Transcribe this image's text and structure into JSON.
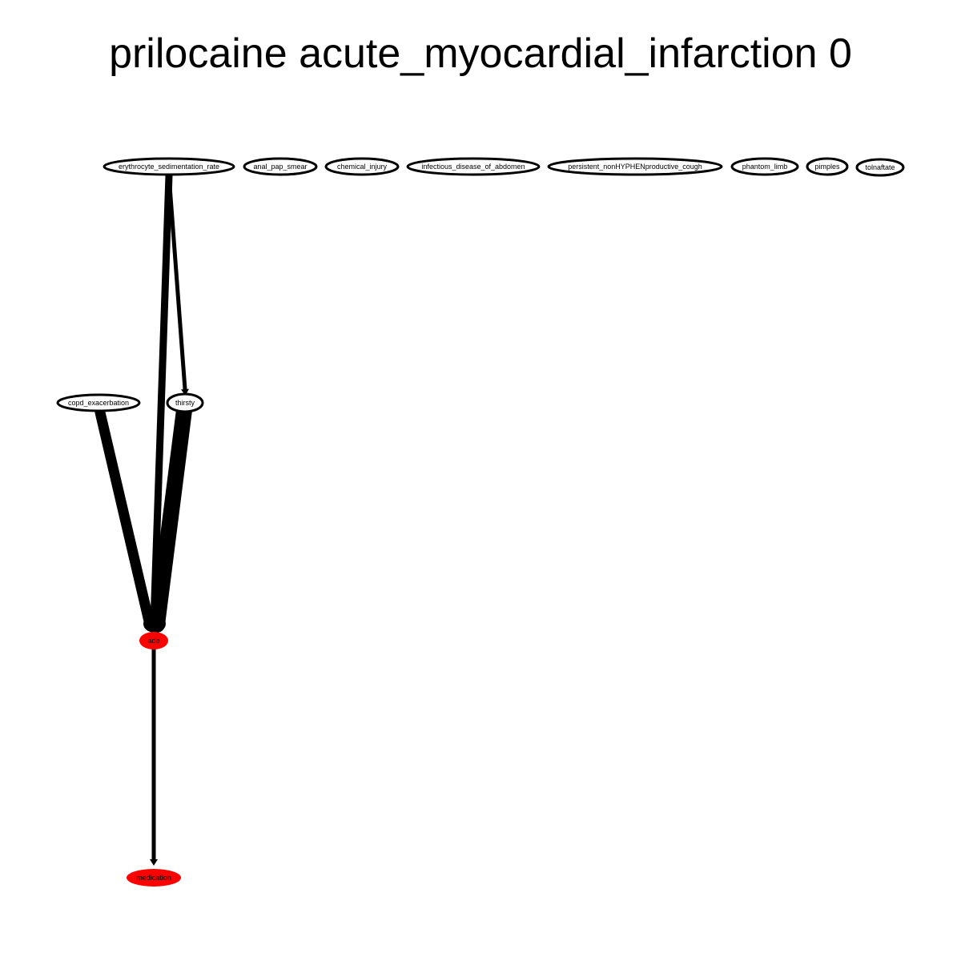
{
  "title": "prilocaine acute_myocardial_infarction 0",
  "colors": {
    "highlight": "#ff0000",
    "node_fill": "#ffffff",
    "stroke": "#000000"
  },
  "nodes": [
    {
      "id": "erythrocyte_sedimentation_rate",
      "label": "erythrocyte_sedimentation_rate",
      "highlight": false
    },
    {
      "id": "anal_pap_smear",
      "label": "anal_pap_smear",
      "highlight": false
    },
    {
      "id": "chemical_injury",
      "label": "chemical_injury",
      "highlight": false
    },
    {
      "id": "infectious_disease_of_abdomen",
      "label": "infectious_disease_of_abdomen",
      "highlight": false
    },
    {
      "id": "persistent_nonHYPHENproductive_cough",
      "label": "persistent_nonHYPHENproductive_cough",
      "highlight": false
    },
    {
      "id": "phantom_limb",
      "label": "phantom_limb",
      "highlight": false
    },
    {
      "id": "pimples",
      "label": "pimples",
      "highlight": false
    },
    {
      "id": "tolnaftate",
      "label": "tolnaftate",
      "highlight": false
    },
    {
      "id": "copd_exacerbation",
      "label": "copd_exacerbation",
      "highlight": false
    },
    {
      "id": "thirsty",
      "label": "thirsty",
      "highlight": false
    },
    {
      "id": "ade",
      "label": "ade",
      "highlight": true
    },
    {
      "id": "medication",
      "label": "medication",
      "highlight": true
    }
  ],
  "edges": [
    {
      "from": "erythrocyte_sedimentation_rate",
      "to": "thirsty",
      "weight": 1
    },
    {
      "from": "erythrocyte_sedimentation_rate",
      "to": "ade",
      "weight": 2
    },
    {
      "from": "copd_exacerbation",
      "to": "ade",
      "weight": 3
    },
    {
      "from": "thirsty",
      "to": "ade",
      "weight": 5
    },
    {
      "from": "ade",
      "to": "medication",
      "weight": 1
    }
  ]
}
